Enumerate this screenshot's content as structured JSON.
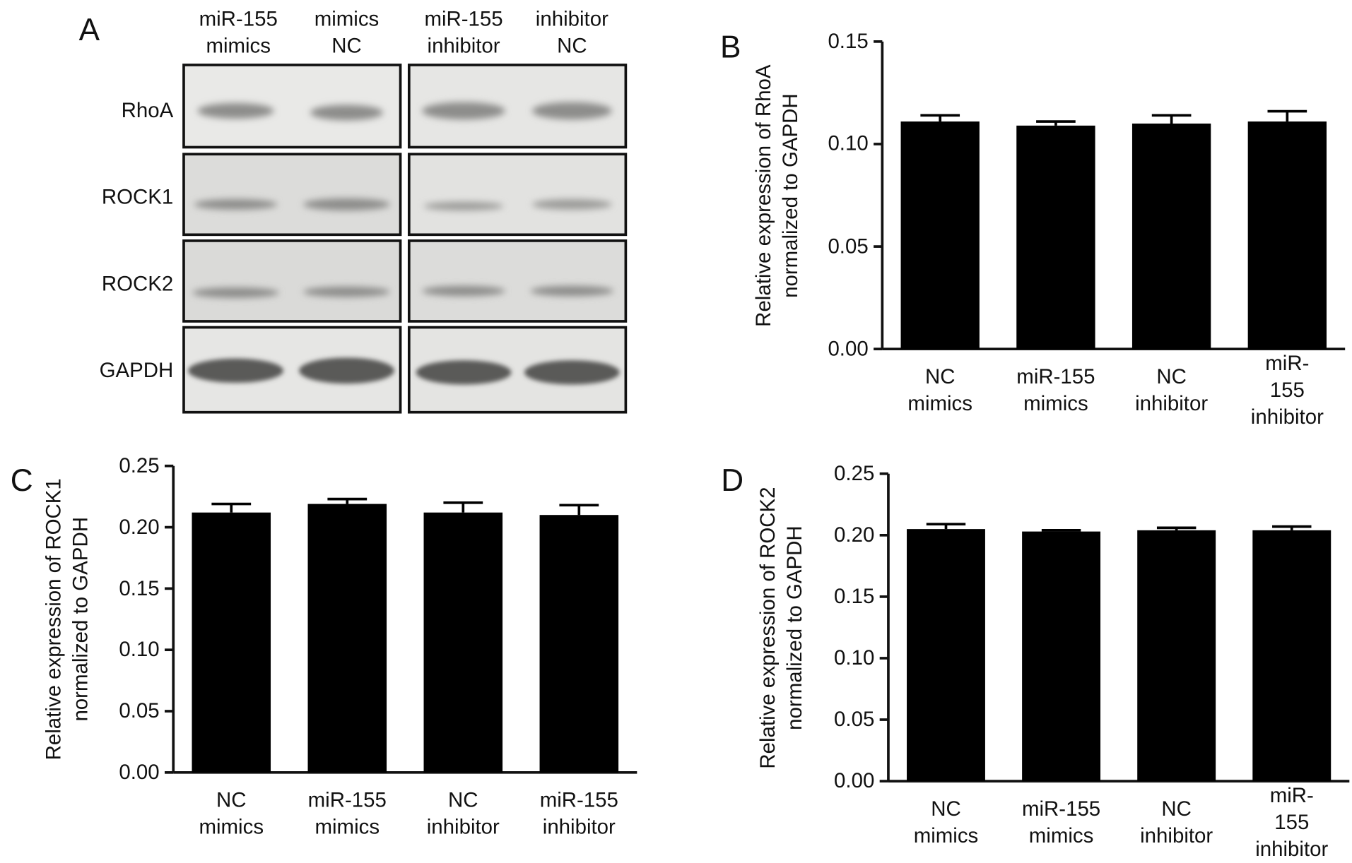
{
  "blot": {
    "panel": "A",
    "lanes": [
      "miR-155\nmimics",
      "mimics\nNC",
      "miR-155\ninhibitor",
      "inhibitor\nNC"
    ],
    "proteins": [
      "RhoA",
      "ROCK1",
      "ROCK2",
      "GAPDH"
    ]
  },
  "chart_data": [
    {
      "type": "bar",
      "panel": "B",
      "ylabel": "Relative expression of RhoA\nnormalized to GAPDH",
      "categories": [
        "NC\nmimics",
        "miR-155\nmimics",
        "NC\ninhibitor",
        "miR-155\ninhibitor"
      ],
      "values": [
        0.111,
        0.109,
        0.11,
        0.111
      ],
      "errors": [
        0.003,
        0.002,
        0.004,
        0.005
      ],
      "color": "#000000",
      "ylim": [
        0,
        0.15
      ],
      "yticks": [
        {
          "value": 0,
          "label": "0.00"
        },
        {
          "value": 0.05,
          "label": "0.05"
        },
        {
          "value": 0.1,
          "label": "0.10"
        },
        {
          "value": 0.15,
          "label": "0.15"
        }
      ]
    },
    {
      "type": "bar",
      "panel": "C",
      "ylabel": "Relative expression of ROCK1\nnormalized to GAPDH",
      "categories": [
        "NC\nmimics",
        "miR-155\nmimics",
        "NC\ninhibitor",
        "miR-155\ninhibitor"
      ],
      "values": [
        0.212,
        0.219,
        0.212,
        0.21
      ],
      "errors": [
        0.007,
        0.004,
        0.008,
        0.008
      ],
      "color": "#000000",
      "ylim": [
        0,
        0.25
      ],
      "yticks": [
        {
          "value": 0,
          "label": "0.00"
        },
        {
          "value": 0.05,
          "label": "0.05"
        },
        {
          "value": 0.1,
          "label": "0.10"
        },
        {
          "value": 0.15,
          "label": "0.15"
        },
        {
          "value": 0.2,
          "label": "0.20"
        },
        {
          "value": 0.25,
          "label": "0.25"
        }
      ]
    },
    {
      "type": "bar",
      "panel": "D",
      "ylabel": "Relative expression of ROCK2\nnormalized to GAPDH",
      "categories": [
        "NC\nmimics",
        "miR-155\nmimics",
        "NC\ninhibitor",
        "miR-155\ninhibitor"
      ],
      "values": [
        0.205,
        0.203,
        0.204,
        0.204
      ],
      "errors": [
        0.004,
        0.001,
        0.002,
        0.003
      ],
      "color": "#000000",
      "ylim": [
        0,
        0.25
      ],
      "yticks": [
        {
          "value": 0,
          "label": "0.00"
        },
        {
          "value": 0.05,
          "label": "0.05"
        },
        {
          "value": 0.1,
          "label": "0.10"
        },
        {
          "value": 0.15,
          "label": "0.15"
        },
        {
          "value": 0.2,
          "label": "0.20"
        },
        {
          "value": 0.25,
          "label": "0.25"
        }
      ]
    }
  ]
}
